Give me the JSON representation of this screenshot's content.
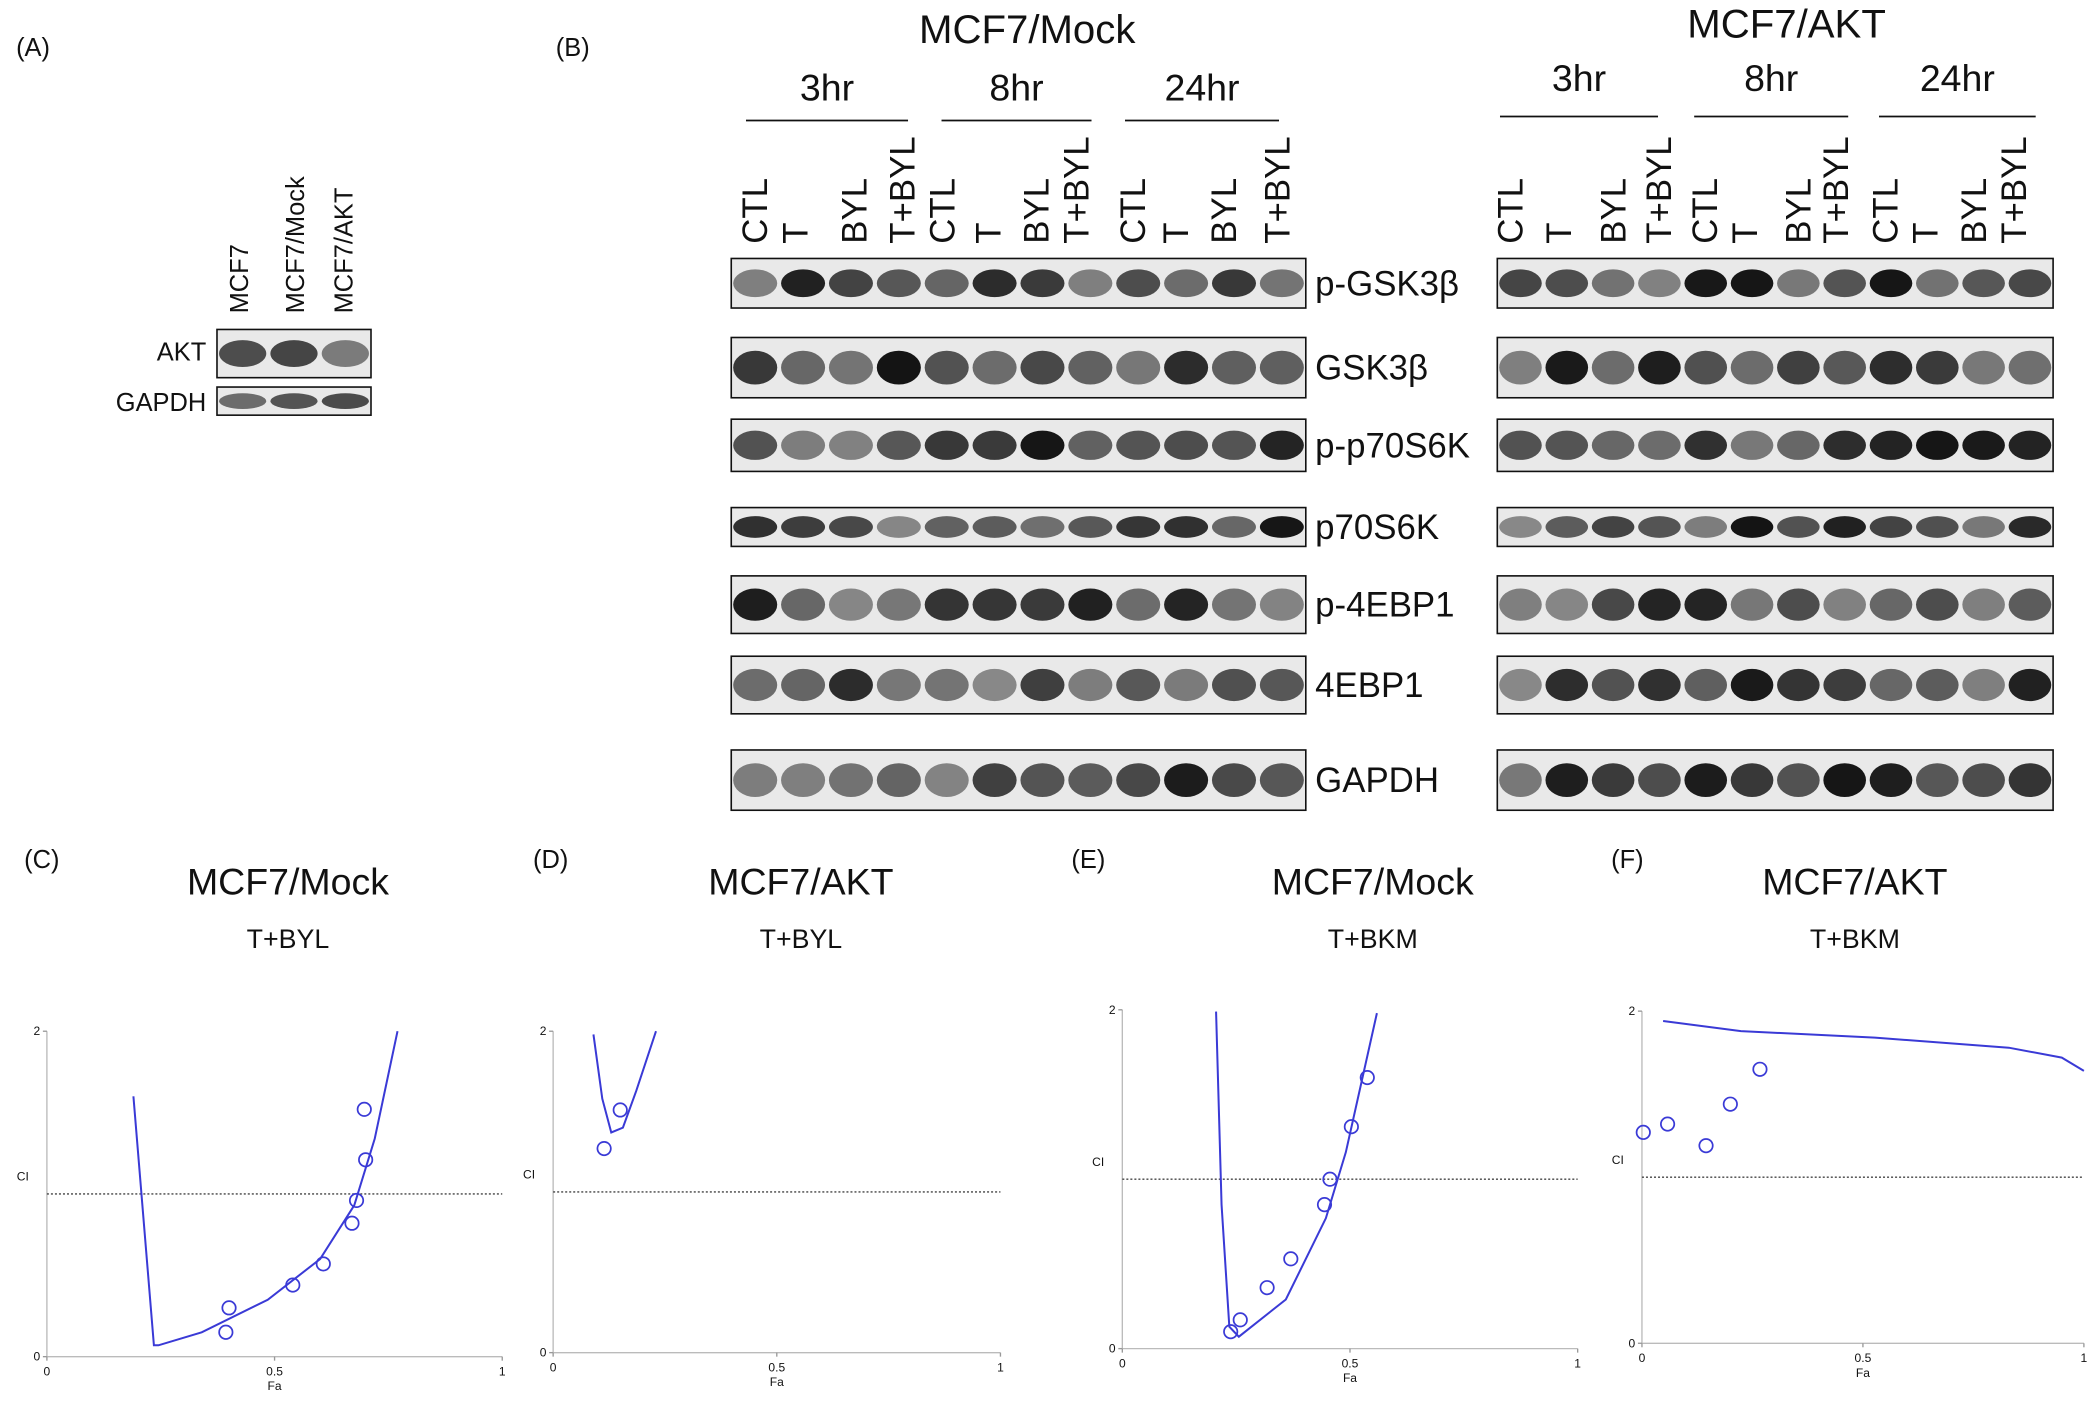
{
  "panel_a": {
    "label": "(A)",
    "lanes": [
      "MCF7",
      "MCF7/Mock",
      "MCF7/AKT"
    ],
    "rows": [
      "AKT",
      "GAPDH"
    ]
  },
  "panel_b": {
    "label": "(B)",
    "groups": [
      {
        "title": "MCF7/Mock",
        "times": [
          "3hr",
          "8hr",
          "24hr"
        ],
        "lanes": [
          "CTL",
          "T",
          "BYL",
          "T+BYL"
        ]
      },
      {
        "title": "MCF7/AKT",
        "times": [
          "3hr",
          "8hr",
          "24hr"
        ],
        "lanes": [
          "CTL",
          "T",
          "BYL",
          "T+BYL"
        ]
      }
    ],
    "rows": [
      "p-GSK3β",
      "GSK3β",
      "p-p70S6K",
      "p70S6K",
      "p-4EBP1",
      "4EBP1",
      "GAPDH"
    ]
  },
  "chart_data": [
    {
      "type": "scatter",
      "panel": "(C)",
      "title": "MCF7/Mock",
      "subtitle": "T+BYL",
      "x_label": "Fa",
      "y_label": "CI",
      "xlim": [
        0,
        1
      ],
      "ylim": [
        0,
        2
      ],
      "xticks": [
        0,
        0.5,
        1
      ],
      "yticks": [
        0,
        2
      ],
      "color": "#3a3ad6",
      "reference_line": 1,
      "x": [
        0.4,
        0.393,
        0.54,
        0.607,
        0.67,
        0.68,
        0.7,
        0.697
      ],
      "values": [
        0.3,
        0.15,
        0.44,
        0.57,
        0.82,
        0.96,
        1.21,
        1.52
      ],
      "curve": {
        "x": [
          0.19,
          0.235,
          0.245,
          0.34,
          0.485,
          0.6,
          0.675,
          0.72,
          0.77
        ],
        "values": [
          1.6,
          0.07,
          0.07,
          0.15,
          0.35,
          0.6,
          0.93,
          1.34,
          2.0
        ]
      }
    },
    {
      "type": "scatter",
      "panel": "(D)",
      "title": "MCF7/AKT",
      "subtitle": "T+BYL",
      "x_label": "Fa",
      "y_label": "CI",
      "xlim": [
        0,
        1
      ],
      "ylim": [
        0,
        2
      ],
      "xticks": [
        0,
        0.5,
        1
      ],
      "yticks": [
        0,
        2
      ],
      "color": "#3a3ad6",
      "reference_line": 1,
      "x": [
        0.114,
        0.15
      ],
      "values": [
        1.27,
        1.51
      ],
      "curve": {
        "x": [
          0.09,
          0.11,
          0.13,
          0.156,
          0.186,
          0.23
        ],
        "values": [
          1.98,
          1.58,
          1.37,
          1.4,
          1.63,
          2.0
        ]
      }
    },
    {
      "type": "scatter",
      "panel": "(E)",
      "title": "MCF7/Mock",
      "subtitle": "T+BKM",
      "x_label": "Fa",
      "y_label": "CI",
      "xlim": [
        0,
        1
      ],
      "ylim": [
        0,
        2
      ],
      "xticks": [
        0,
        0.5,
        1
      ],
      "yticks": [
        0,
        2
      ],
      "color": "#3a3ad6",
      "reference_line": 1,
      "x": [
        0.238,
        0.259,
        0.318,
        0.37,
        0.444,
        0.456,
        0.503,
        0.538
      ],
      "values": [
        0.1,
        0.17,
        0.36,
        0.53,
        0.85,
        1.0,
        1.31,
        1.6
      ],
      "curve": {
        "x": [
          0.206,
          0.218,
          0.235,
          0.256,
          0.359,
          0.447,
          0.491,
          0.559
        ],
        "values": [
          1.99,
          0.85,
          0.13,
          0.07,
          0.29,
          0.77,
          1.16,
          1.98
        ]
      }
    },
    {
      "type": "scatter",
      "panel": "(F)",
      "title": "MCF7/AKT",
      "subtitle": "T+BKM",
      "x_label": "Fa",
      "y_label": "CI",
      "xlim": [
        0,
        1
      ],
      "ylim": [
        0,
        2
      ],
      "xticks": [
        0,
        0.5,
        1
      ],
      "yticks": [
        0,
        2
      ],
      "color": "#3a3ad6",
      "reference_line": 1,
      "x": [
        0.003,
        0.058,
        0.145,
        0.2,
        0.267
      ],
      "values": [
        1.27,
        1.32,
        1.19,
        1.44,
        1.65
      ],
      "curve": {
        "x": [
          0.048,
          0.224,
          0.527,
          0.83,
          0.95,
          1.0
        ],
        "values": [
          1.94,
          1.88,
          1.84,
          1.78,
          1.72,
          1.64
        ]
      }
    }
  ]
}
